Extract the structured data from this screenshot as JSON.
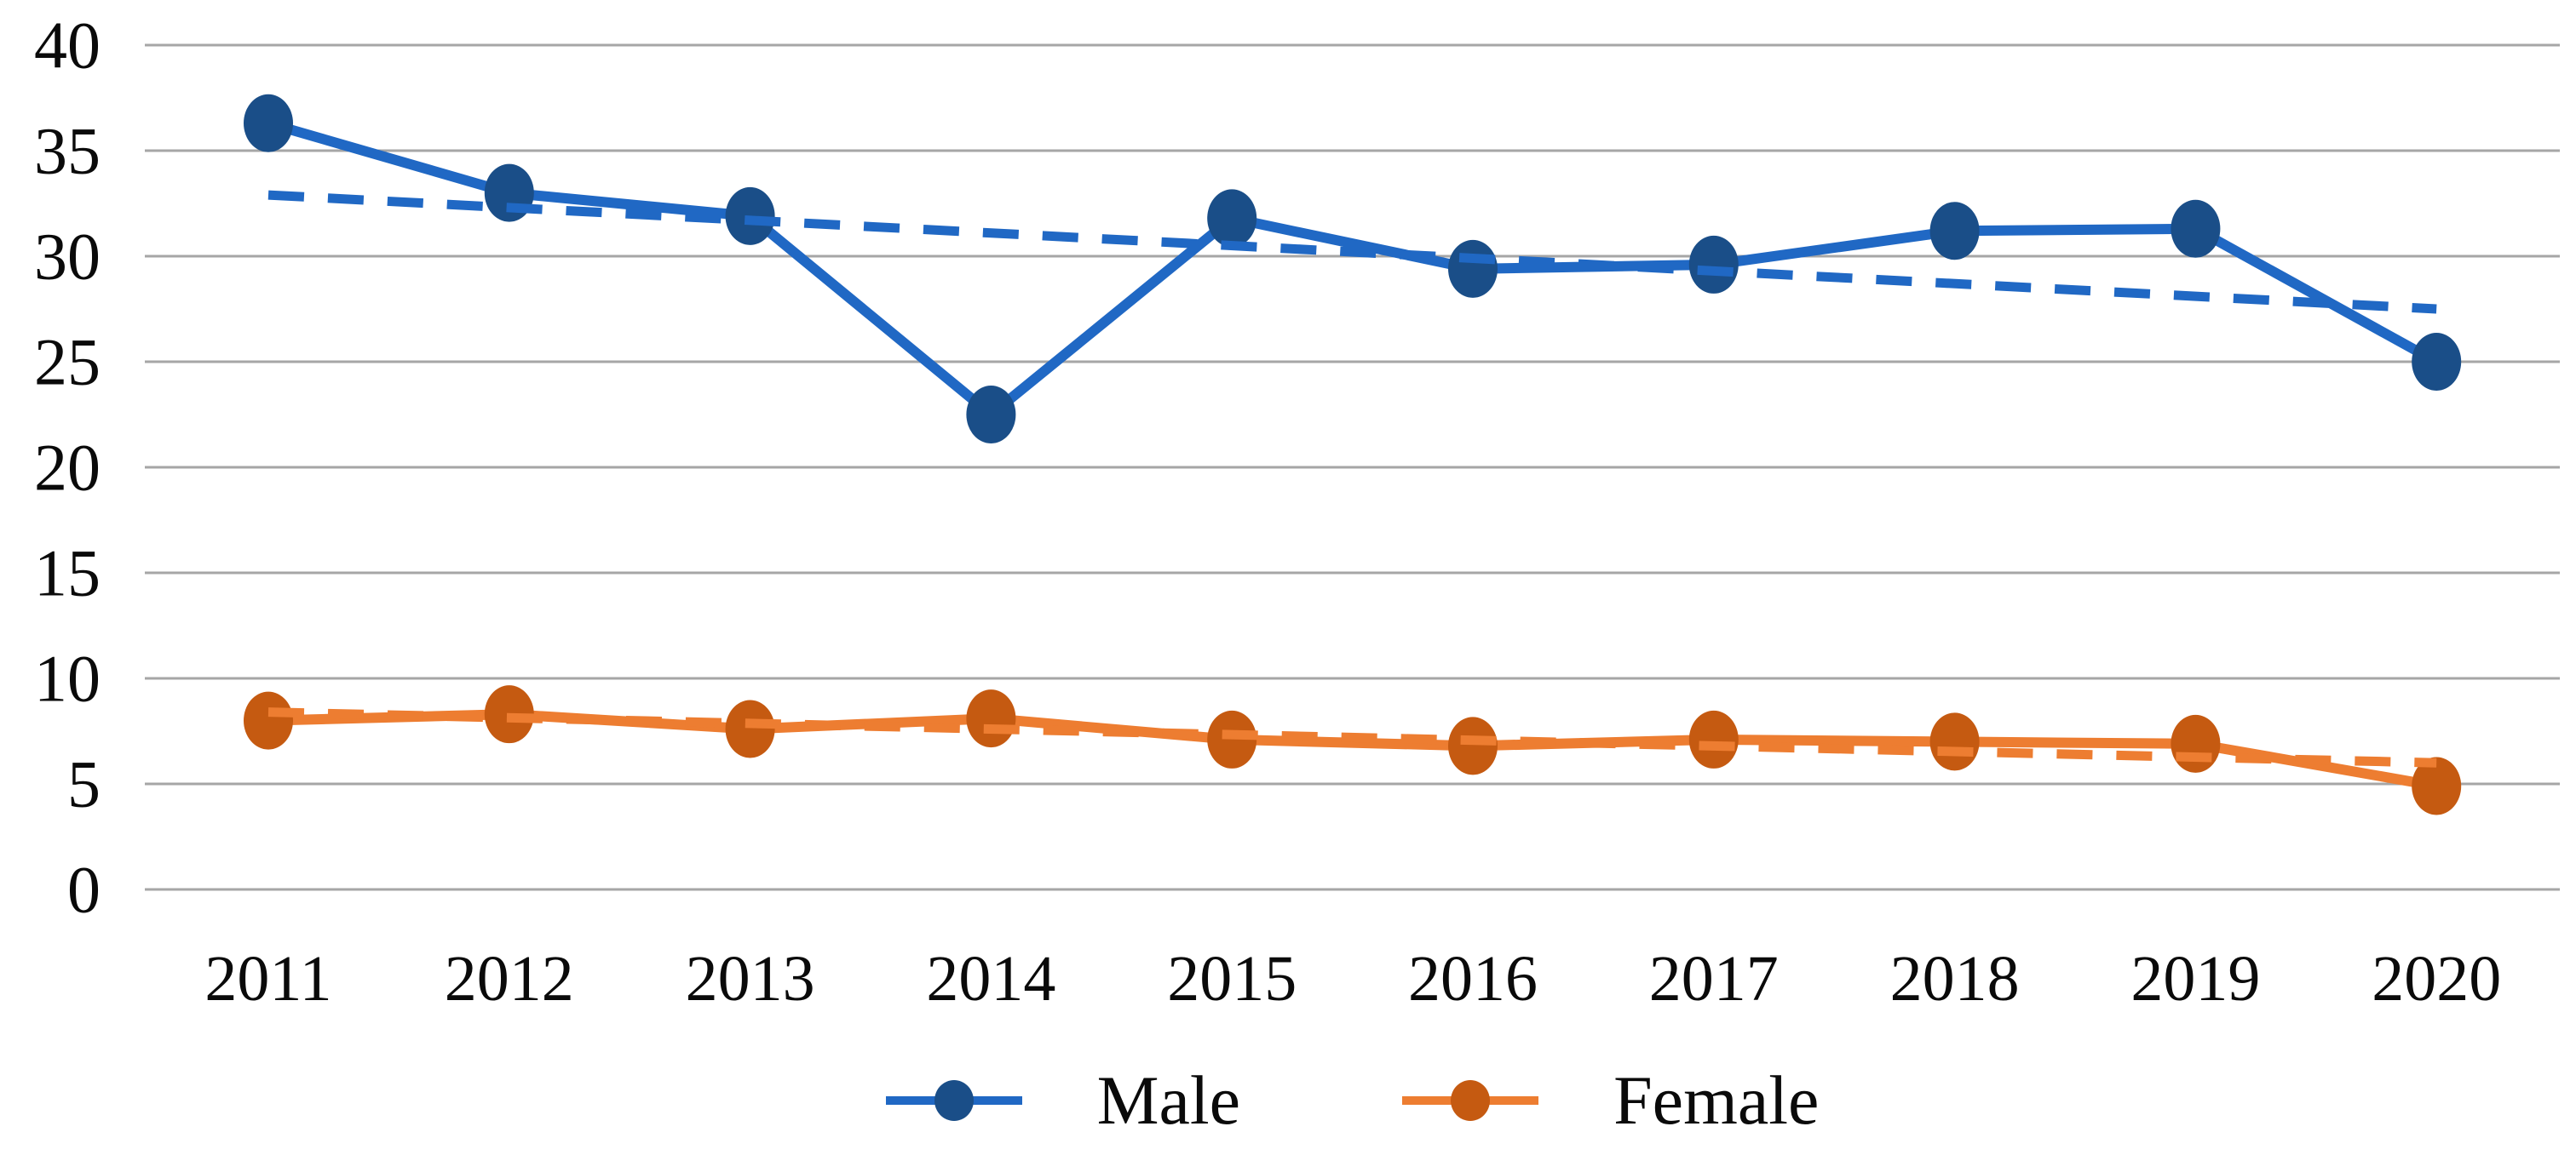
{
  "figure": {
    "background_color": "#ffffff",
    "text_color": "#0a0a0a"
  },
  "chart_data": {
    "type": "line",
    "title": "",
    "xlabel": "",
    "ylabel": "",
    "categories": [
      "2011",
      "2012",
      "2013",
      "2014",
      "2015",
      "2016",
      "2017",
      "2018",
      "2019",
      "2020"
    ],
    "series": [
      {
        "name": "Male",
        "values": [
          36.3,
          33.0,
          31.9,
          22.5,
          31.8,
          29.4,
          29.6,
          31.2,
          31.3,
          25.0
        ],
        "line_color": "#2068c4",
        "marker_color": "#1a4e88",
        "trendline": {
          "style": "dashed",
          "start_value": 32.9,
          "end_value": 27.5
        }
      },
      {
        "name": "Female",
        "values": [
          8.0,
          8.3,
          7.6,
          8.1,
          7.1,
          6.8,
          7.1,
          7.0,
          6.9,
          4.9
        ],
        "line_color": "#ed7d31",
        "marker_color": "#c55a11",
        "trendline": {
          "style": "dashed",
          "start_value": 8.4,
          "end_value": 6.0
        }
      }
    ],
    "ylim": [
      0,
      40
    ],
    "yticks": [
      0,
      5,
      10,
      15,
      20,
      25,
      30,
      35,
      40
    ],
    "grid": "horizontal",
    "gridline_color": "#a6a6a6",
    "legend_position": "bottom"
  }
}
